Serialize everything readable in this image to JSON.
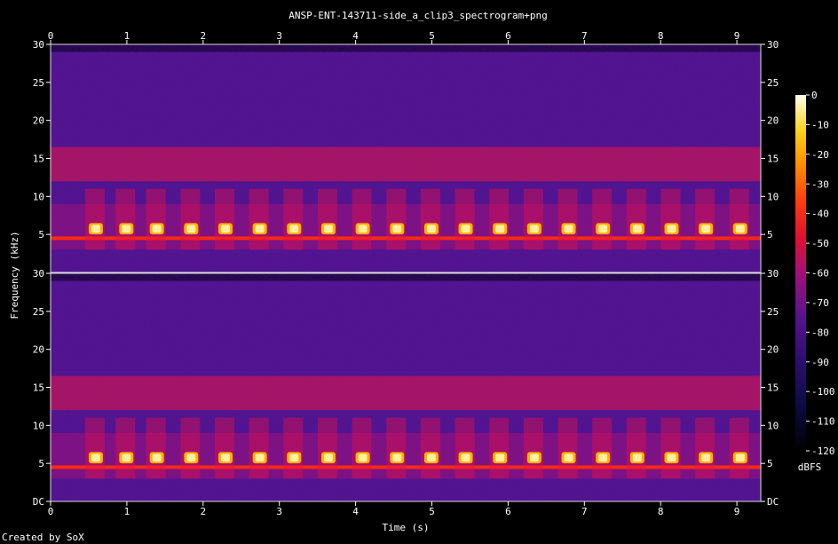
{
  "chart_data": {
    "type": "heatmap",
    "title": "ANSP-ENT-143711-side_a_clip3_spectrogram+png",
    "xlabel": "Time (s)",
    "ylabel": "Frequency (kHz)",
    "xlim": [
      0,
      9.3
    ],
    "ylim_khz": [
      0,
      30
    ],
    "x_ticks": [
      "0",
      "1",
      "2",
      "3",
      "4",
      "5",
      "6",
      "7",
      "8",
      "9"
    ],
    "y_ticks_top": [
      "5",
      "10",
      "15",
      "20",
      "25",
      "30"
    ],
    "y_ticks_bottom": [
      "DC",
      "5",
      "10",
      "15",
      "20",
      "25",
      "30"
    ],
    "channels": 2,
    "background_band_khz": [
      4.5,
      4.5
    ],
    "call_band_khz": [
      5.0,
      6.5
    ],
    "noise_band_khz": [
      12,
      16.5
    ],
    "call_onsets_s": [
      0.5,
      0.9,
      1.3,
      1.75,
      2.2,
      2.65,
      3.1,
      3.55,
      4.0,
      4.45,
      4.9,
      5.35,
      5.8,
      6.25,
      6.7,
      7.15,
      7.6,
      8.05,
      8.5,
      8.95
    ],
    "colorbar": {
      "label": "dBFS",
      "range": [
        -120,
        0
      ],
      "ticks": [
        "0",
        "-10",
        "-20",
        "-30",
        "-40",
        "-50",
        "-60",
        "-70",
        "-80",
        "-90",
        "-100",
        "-110",
        "-120"
      ]
    },
    "footer": "Created by SoX"
  }
}
